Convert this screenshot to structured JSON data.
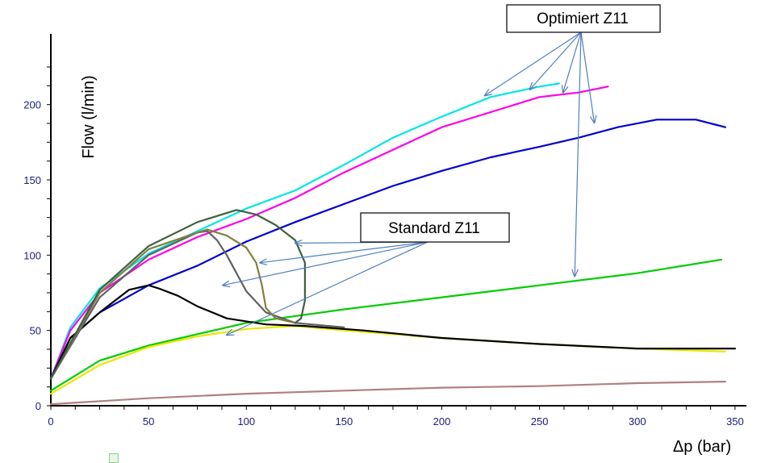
{
  "chart_data": {
    "type": "line",
    "xlabel": "Δp (bar)",
    "ylabel": "Flow (l/min)",
    "xlim": [
      0,
      355
    ],
    "ylim": [
      0,
      240
    ],
    "xticks": [
      0,
      50,
      100,
      150,
      200,
      250,
      300,
      350
    ],
    "yticks": [
      0,
      50,
      100,
      150,
      200
    ],
    "grid": false,
    "annotations": [
      {
        "text": "Optimiert Z11",
        "targets": [
          [
            222,
            206
          ],
          [
            245,
            210
          ],
          [
            262,
            208
          ],
          [
            278,
            188
          ],
          [
            268,
            86
          ]
        ]
      },
      {
        "text": "Standard Z11",
        "targets": [
          [
            125,
            108
          ],
          [
            107,
            95
          ],
          [
            88,
            80
          ],
          [
            90,
            47
          ]
        ]
      }
    ],
    "series": [
      {
        "color": "#00e5e5",
        "points": [
          [
            0,
            18
          ],
          [
            10,
            52
          ],
          [
            25,
            78
          ],
          [
            50,
            101
          ],
          [
            75,
            116
          ],
          [
            100,
            131
          ],
          [
            125,
            143
          ],
          [
            150,
            160
          ],
          [
            175,
            178
          ],
          [
            200,
            192
          ],
          [
            225,
            205
          ],
          [
            250,
            212
          ],
          [
            260,
            214
          ]
        ]
      },
      {
        "color": "#ff00e6",
        "points": [
          [
            0,
            18
          ],
          [
            10,
            50
          ],
          [
            25,
            75
          ],
          [
            50,
            97
          ],
          [
            75,
            112
          ],
          [
            100,
            124
          ],
          [
            125,
            138
          ],
          [
            150,
            155
          ],
          [
            175,
            170
          ],
          [
            200,
            185
          ],
          [
            225,
            195
          ],
          [
            250,
            205
          ],
          [
            270,
            208
          ],
          [
            285,
            212
          ]
        ]
      },
      {
        "color": "#0000d0",
        "points": [
          [
            0,
            18
          ],
          [
            10,
            45
          ],
          [
            25,
            62
          ],
          [
            50,
            80
          ],
          [
            75,
            93
          ],
          [
            100,
            109
          ],
          [
            125,
            122
          ],
          [
            150,
            134
          ],
          [
            175,
            146
          ],
          [
            200,
            156
          ],
          [
            225,
            165
          ],
          [
            250,
            172
          ],
          [
            270,
            178
          ],
          [
            290,
            185
          ],
          [
            310,
            190
          ],
          [
            330,
            190
          ],
          [
            345,
            185
          ]
        ]
      },
      {
        "color": "#00cc00",
        "points": [
          [
            0,
            10
          ],
          [
            25,
            30
          ],
          [
            50,
            40
          ],
          [
            100,
            55
          ],
          [
            150,
            64
          ],
          [
            200,
            72
          ],
          [
            250,
            80
          ],
          [
            300,
            88
          ],
          [
            343,
            97
          ]
        ]
      },
      {
        "color": "#e8e800",
        "points": [
          [
            0,
            8
          ],
          [
            25,
            27
          ],
          [
            50,
            39
          ],
          [
            75,
            46
          ],
          [
            100,
            51
          ],
          [
            125,
            53
          ],
          [
            150,
            50
          ],
          [
            200,
            45
          ],
          [
            250,
            41
          ],
          [
            300,
            38
          ],
          [
            345,
            36
          ]
        ]
      },
      {
        "color": "#b08080",
        "points": [
          [
            0,
            1
          ],
          [
            50,
            5
          ],
          [
            100,
            8
          ],
          [
            150,
            10
          ],
          [
            200,
            12
          ],
          [
            250,
            13
          ],
          [
            300,
            15
          ],
          [
            345,
            16
          ]
        ]
      },
      {
        "color": "#000000",
        "points": [
          [
            0,
            18
          ],
          [
            10,
            45
          ],
          [
            25,
            62
          ],
          [
            40,
            77
          ],
          [
            50,
            80
          ],
          [
            55,
            78
          ],
          [
            65,
            73
          ],
          [
            75,
            66
          ],
          [
            90,
            58
          ],
          [
            110,
            54
          ],
          [
            130,
            53
          ],
          [
            160,
            50
          ],
          [
            200,
            45
          ],
          [
            250,
            41
          ],
          [
            300,
            38
          ],
          [
            350,
            38
          ]
        ]
      },
      {
        "color": "#606060",
        "points": [
          [
            0,
            18
          ],
          [
            25,
            72
          ],
          [
            50,
            100
          ],
          [
            75,
            115
          ],
          [
            80,
            116
          ],
          [
            85,
            110
          ],
          [
            90,
            100
          ],
          [
            95,
            88
          ],
          [
            100,
            76
          ],
          [
            110,
            62
          ],
          [
            125,
            55
          ],
          [
            150,
            52
          ]
        ]
      },
      {
        "color": "#808040",
        "points": [
          [
            0,
            18
          ],
          [
            25,
            75
          ],
          [
            50,
            104
          ],
          [
            75,
            115
          ],
          [
            80,
            117
          ],
          [
            90,
            113
          ],
          [
            100,
            105
          ],
          [
            105,
            95
          ],
          [
            108,
            80
          ],
          [
            110,
            65
          ],
          [
            115,
            58
          ],
          [
            125,
            55
          ]
        ]
      },
      {
        "color": "#406040",
        "points": [
          [
            0,
            18
          ],
          [
            25,
            77
          ],
          [
            50,
            106
          ],
          [
            75,
            122
          ],
          [
            95,
            130
          ],
          [
            105,
            127
          ],
          [
            115,
            120
          ],
          [
            125,
            110
          ],
          [
            130,
            95
          ],
          [
            130,
            70
          ],
          [
            128,
            58
          ],
          [
            125,
            55
          ]
        ]
      }
    ]
  }
}
